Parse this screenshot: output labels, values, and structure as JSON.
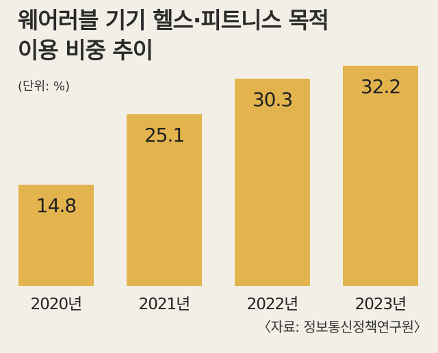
{
  "title_line1": "웨어러블 기기 헬스·피트니스 목적",
  "title_line2": "이용 비중 추이",
  "unit": "(단위: %)",
  "source": "〈자료: 정보통신정책연구원〉",
  "bar_color": "#e3b44e",
  "background_color": "#f2efe6",
  "chart_data": {
    "type": "bar",
    "title": "웨어러블 기기 헬스·피트니스 목적 이용 비중 추이",
    "categories": [
      "2020년",
      "2021년",
      "2022년",
      "2023년"
    ],
    "values": [
      14.8,
      25.1,
      30.3,
      32.2
    ],
    "value_labels": [
      "14.8",
      "25.1",
      "30.3",
      "32.2"
    ],
    "unit": "%",
    "ylim": [
      0,
      40
    ],
    "grid": false,
    "legend": "none"
  }
}
